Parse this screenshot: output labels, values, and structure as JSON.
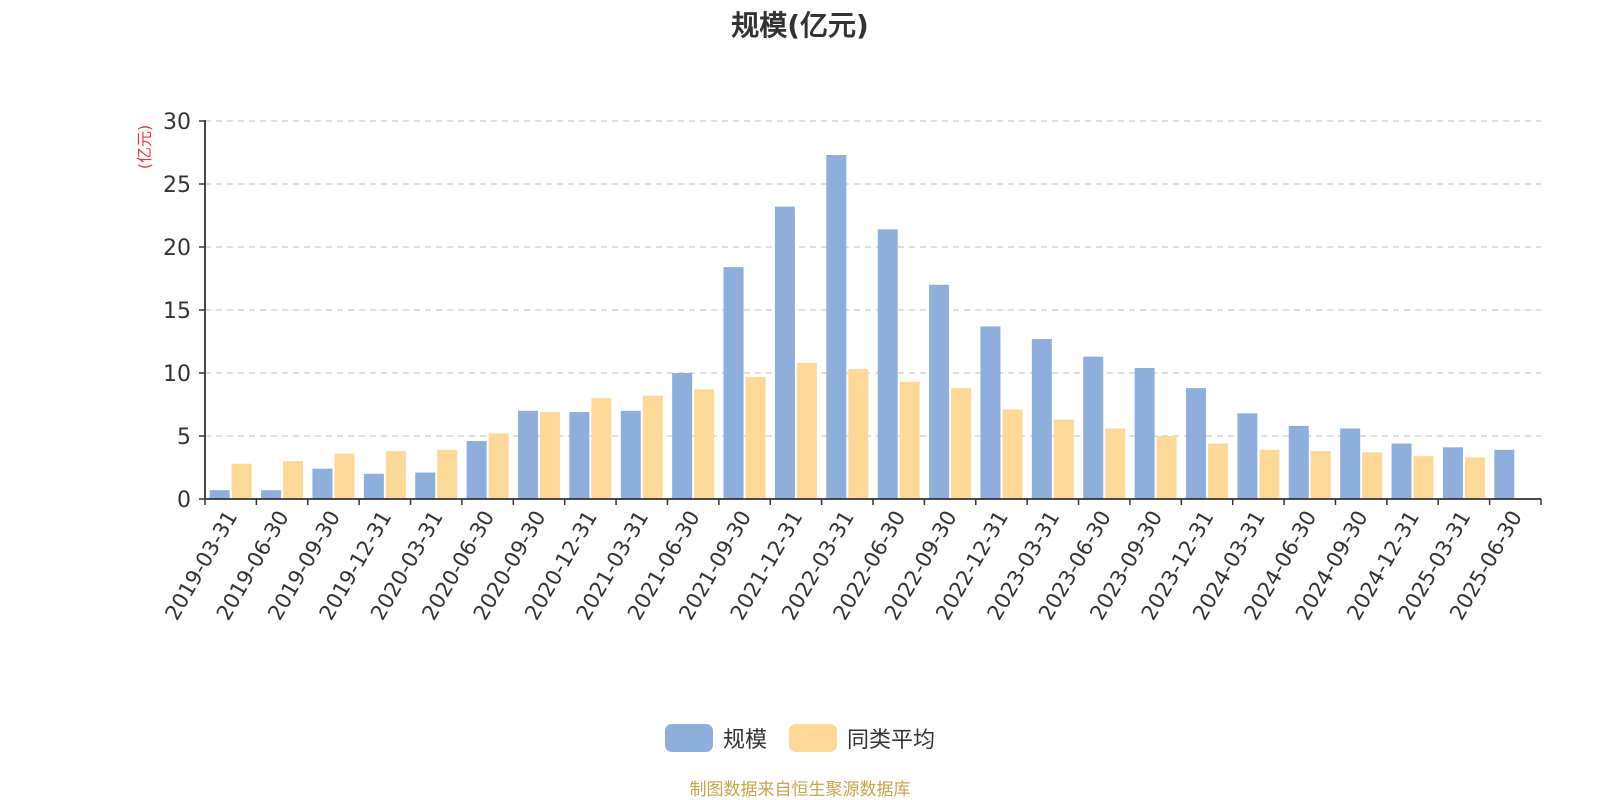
{
  "chart_data": {
    "type": "bar",
    "title": "规模(亿元)",
    "ylabel": "(亿元)",
    "ylim": [
      0,
      30
    ],
    "yticks": [
      0,
      5,
      10,
      15,
      20,
      25,
      30
    ],
    "grid": true,
    "legend_position": "bottom-center",
    "categories": [
      "2019-03-31",
      "2019-06-30",
      "2019-09-30",
      "2019-12-31",
      "2020-03-31",
      "2020-06-30",
      "2020-09-30",
      "2020-12-31",
      "2021-03-31",
      "2021-06-30",
      "2021-09-30",
      "2021-12-31",
      "2022-03-31",
      "2022-06-30",
      "2022-09-30",
      "2022-12-31",
      "2023-03-31",
      "2023-06-30",
      "2023-09-30",
      "2023-12-31",
      "2024-03-31",
      "2024-06-30",
      "2024-09-30",
      "2024-12-31",
      "2025-03-31",
      "2025-06-30"
    ],
    "series": [
      {
        "name": "规模",
        "color": "#8eaedb",
        "values": [
          0.7,
          0.7,
          2.4,
          2.0,
          2.1,
          4.6,
          7.0,
          6.9,
          7.0,
          10.0,
          18.4,
          23.2,
          27.3,
          21.4,
          17.0,
          13.7,
          12.7,
          11.3,
          10.4,
          8.8,
          6.8,
          5.8,
          5.6,
          4.4,
          4.1,
          3.9
        ]
      },
      {
        "name": "同类平均",
        "color": "#fdd897",
        "values": [
          2.8,
          3.0,
          3.6,
          3.8,
          3.9,
          5.2,
          6.9,
          8.0,
          8.2,
          8.7,
          9.7,
          10.8,
          10.3,
          9.3,
          8.8,
          7.1,
          6.3,
          5.6,
          5.0,
          4.4,
          3.9,
          3.8,
          3.7,
          3.4,
          3.3,
          null
        ]
      }
    ]
  },
  "footer": {
    "source_text": "制图数据来自恒生聚源数据库",
    "color": "#c9a44a"
  },
  "colors": {
    "y_label": "#e8383d",
    "axis": "#333333",
    "grid": "#cccccc",
    "text": "#333333"
  }
}
